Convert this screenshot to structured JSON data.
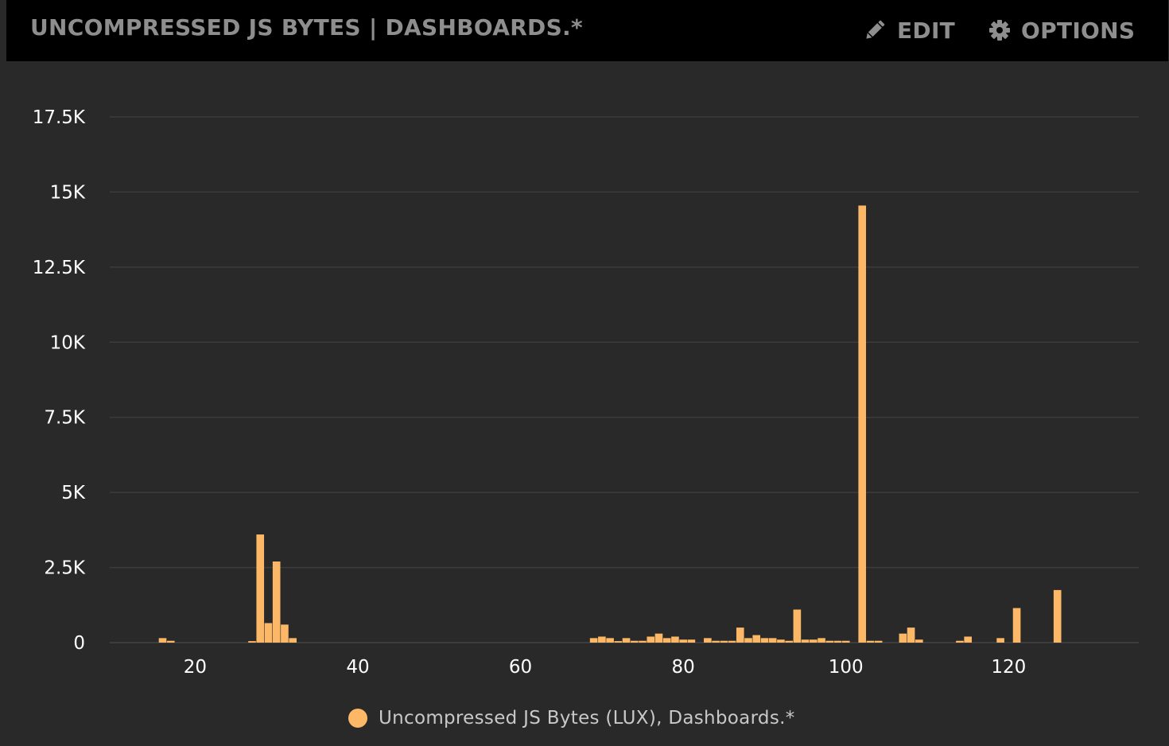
{
  "header": {
    "title": "UNCOMPRESSED JS BYTES | DASHBOARDS.*",
    "edit_label": "EDIT",
    "edit_icon": "pencil-icon",
    "options_label": "OPTIONS",
    "options_icon": "gear-icon"
  },
  "colors": {
    "background": "#292929",
    "header_background": "#000000",
    "series": "#fdb867",
    "grid": "#3c3c3c",
    "text": "#ffffff",
    "header_text": "#8e8e8e"
  },
  "legend": {
    "label": "Uncompressed JS Bytes (LUX), Dashboards.*"
  },
  "chart_data": {
    "type": "bar",
    "title": "",
    "xlabel": "",
    "ylabel": "",
    "xlim": [
      9.5,
      136
    ],
    "ylim": [
      0,
      17500
    ],
    "xticks": [
      20,
      40,
      60,
      80,
      100,
      120
    ],
    "yticks": [
      0,
      2500,
      5000,
      7500,
      10000,
      12500,
      15000,
      17500
    ],
    "ytick_labels": [
      "0",
      "2.5K",
      "5K",
      "7.5K",
      "10K",
      "12.5K",
      "15K",
      "17.5K"
    ],
    "grid": true,
    "legend_position": "bottom-center",
    "series": [
      {
        "name": "Uncompressed JS Bytes (LUX), Dashboards.*",
        "color": "#fdb867",
        "points": [
          [
            16,
            150
          ],
          [
            17,
            60
          ],
          [
            27,
            50
          ],
          [
            28,
            3600
          ],
          [
            29,
            650
          ],
          [
            30,
            2700
          ],
          [
            31,
            600
          ],
          [
            32,
            150
          ],
          [
            69,
            150
          ],
          [
            70,
            200
          ],
          [
            71,
            150
          ],
          [
            72,
            50
          ],
          [
            73,
            150
          ],
          [
            74,
            60
          ],
          [
            75,
            60
          ],
          [
            76,
            200
          ],
          [
            77,
            300
          ],
          [
            78,
            150
          ],
          [
            79,
            200
          ],
          [
            80,
            100
          ],
          [
            81,
            100
          ],
          [
            83,
            150
          ],
          [
            84,
            60
          ],
          [
            85,
            60
          ],
          [
            86,
            60
          ],
          [
            87,
            500
          ],
          [
            88,
            150
          ],
          [
            89,
            250
          ],
          [
            90,
            150
          ],
          [
            91,
            150
          ],
          [
            92,
            100
          ],
          [
            93,
            60
          ],
          [
            94,
            1100
          ],
          [
            95,
            100
          ],
          [
            96,
            100
          ],
          [
            97,
            150
          ],
          [
            98,
            60
          ],
          [
            99,
            60
          ],
          [
            100,
            60
          ],
          [
            102,
            14550
          ],
          [
            103,
            60
          ],
          [
            104,
            60
          ],
          [
            107,
            300
          ],
          [
            108,
            500
          ],
          [
            109,
            100
          ],
          [
            114,
            60
          ],
          [
            115,
            200
          ],
          [
            119,
            150
          ],
          [
            121,
            1150
          ],
          [
            126,
            1750
          ]
        ]
      }
    ]
  }
}
